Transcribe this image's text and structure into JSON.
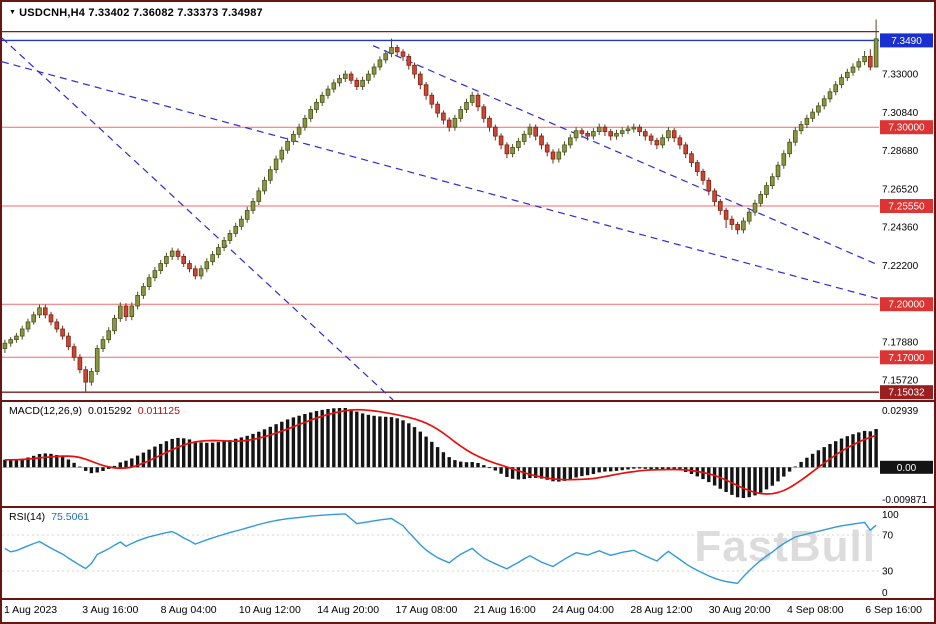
{
  "header": {
    "marker": "▼",
    "symbol_period": "USDCNH,H4",
    "open": "7.33402",
    "high": "7.36082",
    "low": "7.33373",
    "close": "7.34987"
  },
  "colors": {
    "border": "#6a1414",
    "bull_fill": "#8a963d",
    "bull_stroke": "#4a521e",
    "bear_fill": "#cc4631",
    "bear_stroke": "#7e2516",
    "sr_red": "#f26a6a",
    "sr_blue": "#2236cc",
    "sr_maroon": "#7b1f1f",
    "trendline": "#2a2ae0",
    "badge_blue": "#1a2fd0",
    "badge_red": "#dd3333",
    "badge_dark_red": "#9b1f1f",
    "badge_black": "#141414",
    "macd_bar": "#141414",
    "macd_signal": "#e8100c",
    "rsi_line": "#3399dd",
    "axis_text": "#000000",
    "watermark_gray": "#dcdcdc"
  },
  "chart_data": {
    "type": "candlestick",
    "title": "USDCNH,H4",
    "watermark": "FastBull",
    "x_labels": [
      "1 Aug 2023",
      "3 Aug 16:00",
      "8 Aug 04:00",
      "10 Aug 12:00",
      "14 Aug 20:00",
      "17 Aug 08:00",
      "21 Aug 16:00",
      "24 Aug 04:00",
      "28 Aug 12:00",
      "30 Aug 20:00",
      "4 Sep 08:00",
      "6 Sep 16:00"
    ],
    "main": {
      "ylim": [
        7.1459,
        7.3707
      ],
      "axis_labels": [
        {
          "text": "7.33000",
          "price": 7.33
        },
        {
          "text": "7.30840",
          "price": 7.3084
        },
        {
          "text": "7.28680",
          "price": 7.2868
        },
        {
          "text": "7.26520",
          "price": 7.2652
        },
        {
          "text": "7.24360",
          "price": 7.2436
        },
        {
          "text": "7.22200",
          "price": 7.222
        },
        {
          "text": "7.17880",
          "price": 7.1788
        },
        {
          "text": "7.15720",
          "price": 7.1572
        }
      ],
      "hlines": [
        {
          "price": 7.354,
          "color": "#7b1f1f",
          "width": 1.2,
          "badge": null,
          "badge_color": null
        },
        {
          "price": 7.349,
          "color": "#2236cc",
          "width": 1.4,
          "badge": "7.3490",
          "badge_color": "#1a2fd0"
        },
        {
          "price": 7.3,
          "color": "#f26a6a",
          "width": 1,
          "badge": "7.30000",
          "badge_color": "#dd3333"
        },
        {
          "price": 7.2555,
          "color": "#f26a6a",
          "width": 1,
          "badge": "7.25550",
          "badge_color": "#dd3333"
        },
        {
          "price": 7.2,
          "color": "#f26a6a",
          "width": 1,
          "badge": "7.20000",
          "badge_color": "#dd3333"
        },
        {
          "price": 7.17,
          "color": "#f26a6a",
          "width": 1,
          "badge": "7.17000",
          "badge_color": "#dd3333"
        },
        {
          "price": 7.1503,
          "color": "#7b1f1f",
          "width": 1.4,
          "badge": "7.15032",
          "badge_color": "#9b1f1f"
        }
      ],
      "trendlines": [
        {
          "x1_frac": 0.0,
          "price1": 7.3504,
          "x2_frac": 0.446,
          "price2": 7.1459
        },
        {
          "x1_frac": 0.0,
          "price1": 7.337,
          "x2_frac": 1.0,
          "price2": 7.203
        },
        {
          "x1_frac": 0.423,
          "price1": 7.346,
          "x2_frac": 1.0,
          "price2": 7.222
        }
      ],
      "candles": [
        [
          7.175,
          7.18,
          7.1725,
          7.178
        ],
        [
          7.178,
          7.1815,
          7.176,
          7.18
        ],
        [
          7.18,
          7.1838,
          7.1782,
          7.182
        ],
        [
          7.182,
          7.1878,
          7.18,
          7.186
        ],
        [
          7.186,
          7.1918,
          7.1842,
          7.19
        ],
        [
          7.19,
          7.1958,
          7.1885,
          7.194
        ],
        [
          7.194,
          7.1998,
          7.1922,
          7.198
        ],
        [
          7.198,
          7.1998,
          7.192,
          7.194
        ],
        [
          7.194,
          7.1958,
          7.188,
          7.19
        ],
        [
          7.19,
          7.1918,
          7.184,
          7.186
        ],
        [
          7.186,
          7.1878,
          7.18,
          7.182
        ],
        [
          7.182,
          7.184,
          7.174,
          7.176
        ],
        [
          7.176,
          7.1778,
          7.168,
          7.17
        ],
        [
          7.17,
          7.1718,
          7.161,
          7.163
        ],
        [
          7.163,
          7.165,
          7.15,
          7.156
        ],
        [
          7.156,
          7.164,
          7.154,
          7.162
        ],
        [
          7.162,
          7.177,
          7.16,
          7.175
        ],
        [
          7.175,
          7.182,
          7.173,
          7.18
        ],
        [
          7.18,
          7.187,
          7.178,
          7.185
        ],
        [
          7.185,
          7.194,
          7.183,
          7.192
        ],
        [
          7.192,
          7.201,
          7.19,
          7.199
        ],
        [
          7.199,
          7.2005,
          7.1905,
          7.193
        ],
        [
          7.193,
          7.201,
          7.191,
          7.199
        ],
        [
          7.199,
          7.207,
          7.197,
          7.205
        ],
        [
          7.205,
          7.212,
          7.203,
          7.21
        ],
        [
          7.21,
          7.217,
          7.208,
          7.215
        ],
        [
          7.215,
          7.221,
          7.213,
          7.219
        ],
        [
          7.219,
          7.225,
          7.217,
          7.223
        ],
        [
          7.223,
          7.229,
          7.221,
          7.227
        ],
        [
          7.227,
          7.232,
          7.225,
          7.23
        ],
        [
          7.23,
          7.2315,
          7.225,
          7.227
        ],
        [
          7.227,
          7.2285,
          7.221,
          7.223
        ],
        [
          7.223,
          7.2248,
          7.218,
          7.22
        ],
        [
          7.22,
          7.2218,
          7.214,
          7.216
        ],
        [
          7.216,
          7.222,
          7.214,
          7.22
        ],
        [
          7.22,
          7.226,
          7.218,
          7.224
        ],
        [
          7.224,
          7.23,
          7.222,
          7.228
        ],
        [
          7.228,
          7.234,
          7.226,
          7.232
        ],
        [
          7.232,
          7.238,
          7.23,
          7.236
        ],
        [
          7.236,
          7.242,
          7.234,
          7.24
        ],
        [
          7.24,
          7.246,
          7.238,
          7.244
        ],
        [
          7.244,
          7.25,
          7.242,
          7.248
        ],
        [
          7.248,
          7.255,
          7.246,
          7.253
        ],
        [
          7.253,
          7.26,
          7.251,
          7.258
        ],
        [
          7.258,
          7.266,
          7.256,
          7.264
        ],
        [
          7.264,
          7.272,
          7.262,
          7.27
        ],
        [
          7.27,
          7.278,
          7.268,
          7.276
        ],
        [
          7.276,
          7.284,
          7.274,
          7.282
        ],
        [
          7.282,
          7.289,
          7.28,
          7.287
        ],
        [
          7.287,
          7.294,
          7.285,
          7.292
        ],
        [
          7.292,
          7.298,
          7.29,
          7.296
        ],
        [
          7.296,
          7.302,
          7.294,
          7.3
        ],
        [
          7.3,
          7.307,
          7.298,
          7.305
        ],
        [
          7.305,
          7.312,
          7.303,
          7.31
        ],
        [
          7.31,
          7.316,
          7.308,
          7.314
        ],
        [
          7.314,
          7.32,
          7.312,
          7.318
        ],
        [
          7.318,
          7.3235,
          7.316,
          7.3215
        ],
        [
          7.3215,
          7.327,
          7.3195,
          7.325
        ],
        [
          7.325,
          7.3295,
          7.323,
          7.3275
        ],
        [
          7.3275,
          7.332,
          7.3255,
          7.33
        ],
        [
          7.33,
          7.3315,
          7.3245,
          7.3265
        ],
        [
          7.3265,
          7.328,
          7.321,
          7.323
        ],
        [
          7.323,
          7.3285,
          7.321,
          7.3265
        ],
        [
          7.3265,
          7.332,
          7.3245,
          7.33
        ],
        [
          7.33,
          7.336,
          7.328,
          7.334
        ],
        [
          7.334,
          7.34,
          7.332,
          7.338
        ],
        [
          7.338,
          7.3435,
          7.336,
          7.3415
        ],
        [
          7.3415,
          7.35,
          7.3395,
          7.345
        ],
        [
          7.345,
          7.3465,
          7.34,
          7.3425
        ],
        [
          7.3425,
          7.344,
          7.3375,
          7.34
        ],
        [
          7.34,
          7.3415,
          7.3325,
          7.335
        ],
        [
          7.335,
          7.3365,
          7.3275,
          7.33
        ],
        [
          7.33,
          7.3315,
          7.3215,
          7.324
        ],
        [
          7.324,
          7.3255,
          7.3155,
          7.318
        ],
        [
          7.318,
          7.3195,
          7.3105,
          7.313
        ],
        [
          7.313,
          7.3145,
          7.3055,
          7.308
        ],
        [
          7.308,
          7.3095,
          7.3015,
          7.304
        ],
        [
          7.304,
          7.3055,
          7.2975,
          7.3
        ],
        [
          7.3,
          7.307,
          7.298,
          7.305
        ],
        [
          7.305,
          7.312,
          7.303,
          7.31
        ],
        [
          7.31,
          7.316,
          7.308,
          7.314
        ],
        [
          7.314,
          7.32,
          7.312,
          7.318
        ],
        [
          7.318,
          7.3195,
          7.309,
          7.3115
        ],
        [
          7.3115,
          7.313,
          7.3025,
          7.305
        ],
        [
          7.305,
          7.3065,
          7.2975,
          7.3
        ],
        [
          7.3,
          7.3015,
          7.2925,
          7.295
        ],
        [
          7.295,
          7.2965,
          7.2875,
          7.29
        ],
        [
          7.29,
          7.2915,
          7.2825,
          7.285
        ],
        [
          7.285,
          7.2905,
          7.283,
          7.2885
        ],
        [
          7.2885,
          7.294,
          7.2865,
          7.292
        ],
        [
          7.292,
          7.298,
          7.29,
          7.296
        ],
        [
          7.296,
          7.302,
          7.294,
          7.3
        ],
        [
          7.3,
          7.3015,
          7.2925,
          7.295
        ],
        [
          7.295,
          7.2965,
          7.2875,
          7.29
        ],
        [
          7.29,
          7.2915,
          7.2835,
          7.286
        ],
        [
          7.286,
          7.2875,
          7.2795,
          7.282
        ],
        [
          7.282,
          7.288,
          7.28,
          7.286
        ],
        [
          7.286,
          7.292,
          7.284,
          7.29
        ],
        [
          7.29,
          7.296,
          7.288,
          7.294
        ],
        [
          7.294,
          7.3,
          7.292,
          7.298
        ],
        [
          7.298,
          7.2995,
          7.294,
          7.2965
        ],
        [
          7.2965,
          7.298,
          7.2925,
          7.295
        ],
        [
          7.295,
          7.2995,
          7.293,
          7.2975
        ],
        [
          7.2975,
          7.302,
          7.2955,
          7.3
        ],
        [
          7.3,
          7.3015,
          7.295,
          7.2975
        ],
        [
          7.2975,
          7.299,
          7.2925,
          7.295
        ],
        [
          7.295,
          7.2985,
          7.293,
          7.2965
        ],
        [
          7.2965,
          7.3,
          7.2945,
          7.298
        ],
        [
          7.298,
          7.301,
          7.296,
          7.299
        ],
        [
          7.299,
          7.302,
          7.297,
          7.3
        ],
        [
          7.3,
          7.3015,
          7.295,
          7.2975
        ],
        [
          7.2975,
          7.299,
          7.2925,
          7.295
        ],
        [
          7.295,
          7.2965,
          7.29,
          7.2925
        ],
        [
          7.2925,
          7.294,
          7.2875,
          7.29
        ],
        [
          7.29,
          7.296,
          7.288,
          7.294
        ],
        [
          7.294,
          7.3,
          7.292,
          7.298
        ],
        [
          7.298,
          7.2995,
          7.2915,
          7.294
        ],
        [
          7.294,
          7.2955,
          7.2875,
          7.29
        ],
        [
          7.29,
          7.2915,
          7.2825,
          7.285
        ],
        [
          7.285,
          7.2865,
          7.2775,
          7.28
        ],
        [
          7.28,
          7.2815,
          7.2725,
          7.275
        ],
        [
          7.275,
          7.2765,
          7.2675,
          7.27
        ],
        [
          7.27,
          7.2715,
          7.2615,
          7.264
        ],
        [
          7.264,
          7.2655,
          7.2555,
          7.258
        ],
        [
          7.258,
          7.2595,
          7.2505,
          7.253
        ],
        [
          7.253,
          7.2545,
          7.243,
          7.248
        ],
        [
          7.248,
          7.25,
          7.242,
          7.245
        ],
        [
          7.245,
          7.2465,
          7.2395,
          7.242
        ],
        [
          7.242,
          7.249,
          7.24,
          7.247
        ],
        [
          7.247,
          7.254,
          7.245,
          7.252
        ],
        [
          7.252,
          7.259,
          7.25,
          7.257
        ],
        [
          7.257,
          7.264,
          7.255,
          7.262
        ],
        [
          7.262,
          7.269,
          7.26,
          7.267
        ],
        [
          7.267,
          7.274,
          7.265,
          7.272
        ],
        [
          7.272,
          7.2805,
          7.27,
          7.2785
        ],
        [
          7.2785,
          7.287,
          7.2765,
          7.285
        ],
        [
          7.285,
          7.2935,
          7.283,
          7.2915
        ],
        [
          7.2915,
          7.3,
          7.2895,
          7.298
        ],
        [
          7.298,
          7.3035,
          7.296,
          7.3015
        ],
        [
          7.3015,
          7.307,
          7.2995,
          7.305
        ],
        [
          7.305,
          7.3105,
          7.303,
          7.3085
        ],
        [
          7.3085,
          7.314,
          7.3065,
          7.312
        ],
        [
          7.312,
          7.318,
          7.31,
          7.316
        ],
        [
          7.316,
          7.322,
          7.314,
          7.32
        ],
        [
          7.32,
          7.326,
          7.318,
          7.324
        ],
        [
          7.324,
          7.33,
          7.322,
          7.328
        ],
        [
          7.328,
          7.333,
          7.326,
          7.331
        ],
        [
          7.331,
          7.336,
          7.329,
          7.334
        ],
        [
          7.334,
          7.339,
          7.332,
          7.337
        ],
        [
          7.337,
          7.343,
          7.335,
          7.34
        ],
        [
          7.34,
          7.344,
          7.332,
          7.334
        ],
        [
          7.334,
          7.3608,
          7.3337,
          7.3499
        ]
      ]
    },
    "macd": {
      "name": "MACD(12,26,9)",
      "value_main": "0.015292",
      "value_signal": "0.011125",
      "fast": 12,
      "slow": 26,
      "signal": 9,
      "axis_max": "0.02939",
      "axis_zero": "0.00",
      "axis_min": "-0.009871"
    },
    "rsi": {
      "name": "RSI(14)",
      "value": "75.5061",
      "period": 14,
      "axis_labels": [
        "100",
        "70",
        "30",
        "0"
      ],
      "levels": [
        70,
        30
      ]
    }
  }
}
